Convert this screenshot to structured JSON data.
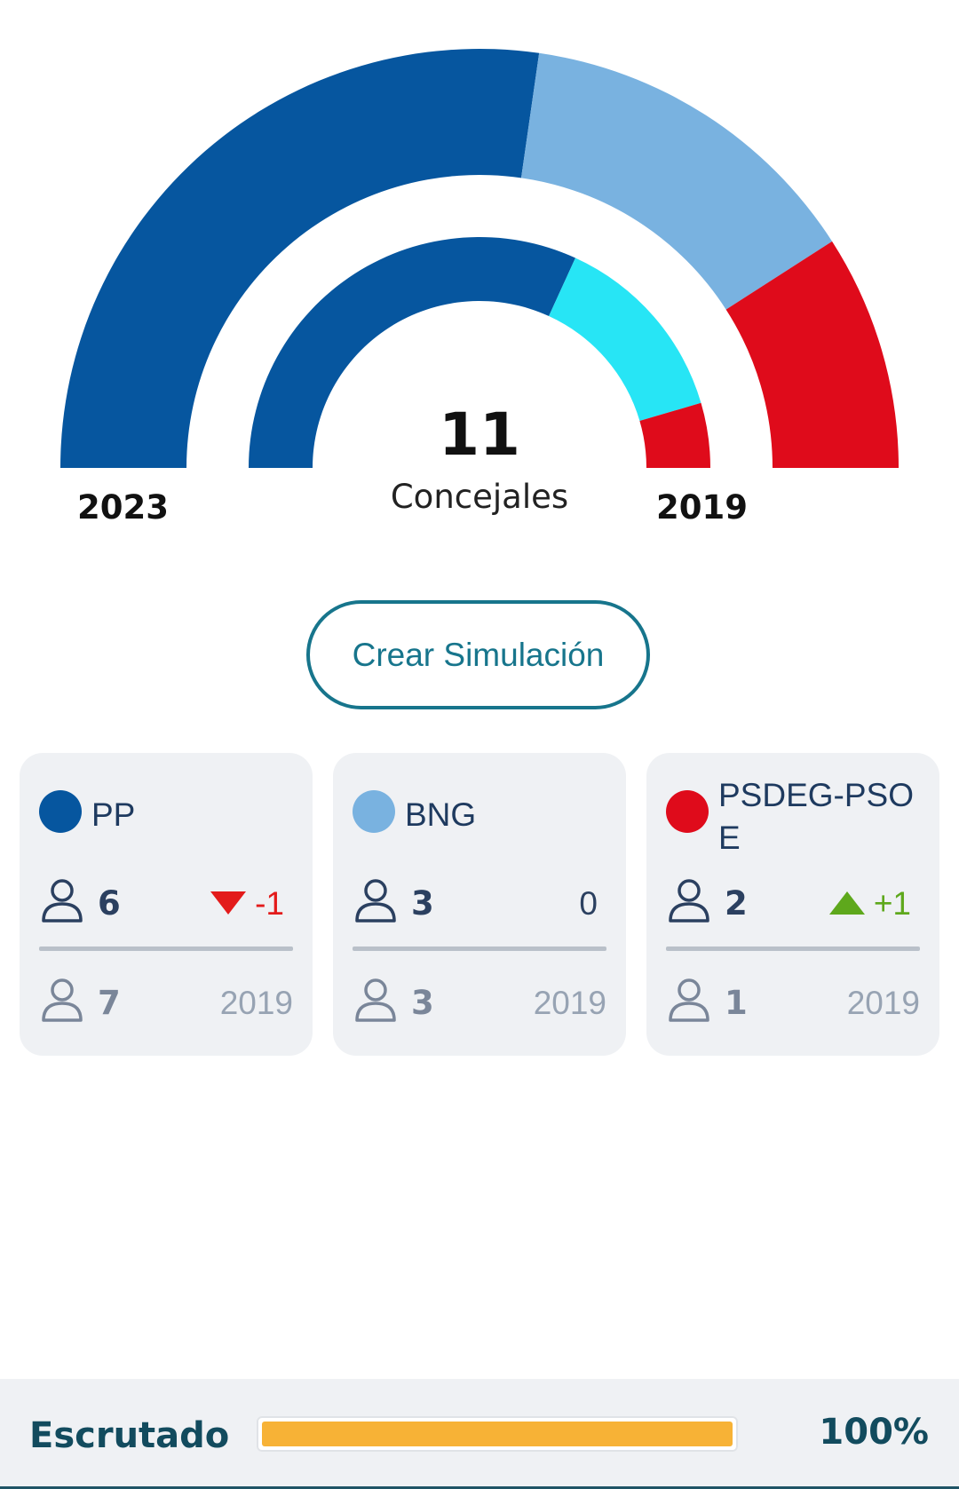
{
  "chart_data": {
    "type": "pie",
    "total": 11,
    "total_label": "Concejales",
    "rings": [
      {
        "year_label": "2023",
        "series": [
          {
            "name": "PP",
            "value": 6,
            "color": "#06569f"
          },
          {
            "name": "BNG",
            "value": 3,
            "color": "#79b2e0"
          },
          {
            "name": "PSDEG-PSOE",
            "value": 2,
            "color": "#df0b1b"
          }
        ]
      },
      {
        "year_label": "2019",
        "series": [
          {
            "name": "PP",
            "value": 7,
            "color": "#06569f"
          },
          {
            "name": "BNG",
            "value": 3,
            "color": "#27e5f5"
          },
          {
            "name": "PSDEG-PSOE",
            "value": 1,
            "color": "#df0b1b"
          }
        ]
      }
    ]
  },
  "simulation_button": {
    "label": "Crear Simulación"
  },
  "cards": [
    {
      "party": "PP",
      "color": "#06569f",
      "seats": "6",
      "change": "-1",
      "change_dir": "down",
      "prev_seats": "7",
      "prev_year": "2019"
    },
    {
      "party": "BNG",
      "color": "#79b2e0",
      "seats": "3",
      "change": "0",
      "change_dir": "none",
      "prev_seats": "3",
      "prev_year": "2019"
    },
    {
      "party": "PSDEG-PSOE",
      "color": "#df0b1b",
      "seats": "2",
      "change": "+1",
      "change_dir": "up",
      "prev_seats": "1",
      "prev_year": "2019"
    }
  ],
  "colors": {
    "down": "#e31b1b",
    "up": "#5ea81c",
    "neutral": "#2b4060",
    "accent": "#17758c"
  },
  "footer": {
    "label": "Escrutado",
    "percent_text": "100%",
    "percent": 100,
    "bar_color": "#f7b236"
  }
}
